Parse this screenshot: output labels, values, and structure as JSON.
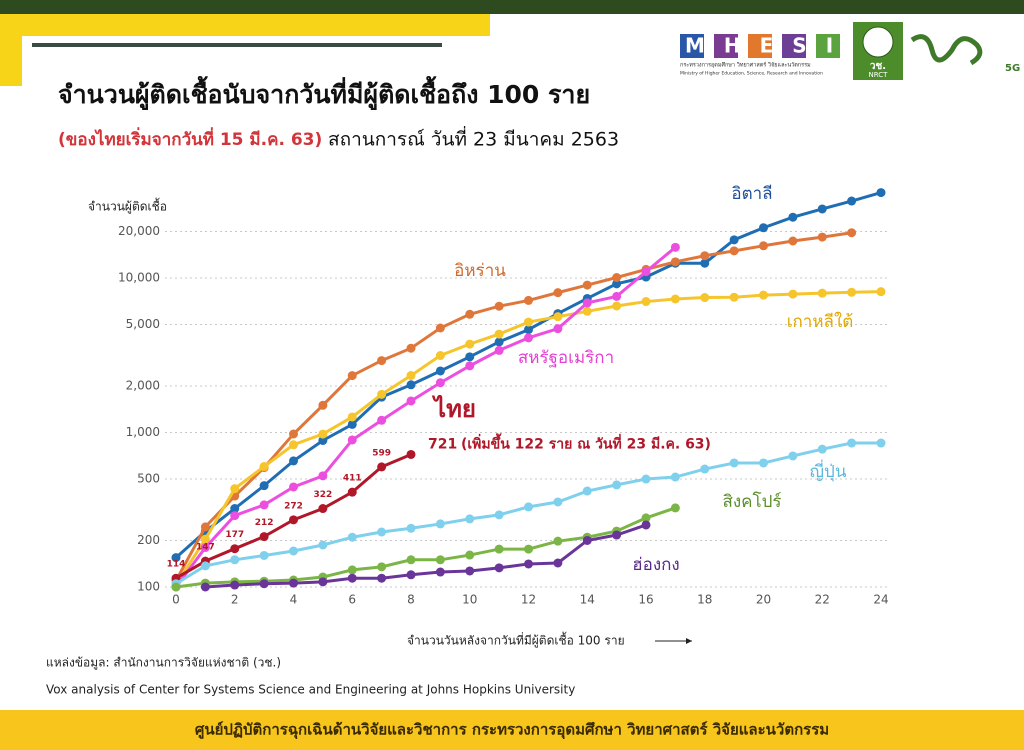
{
  "chart_data": {
    "type": "line",
    "title": "จำนวนผู้ติดเชื้อนับจากวันที่มีผู้ติดเชื้อถึง 100 ราย",
    "subtitle_note": "(ของไทยเริ่มจากวันที่ 15 มี.ค. 63)",
    "subtitle": "สถานการณ์ วันที่ 23 มีนาคม 2563",
    "y_label": "จำนวนผู้ติดเชื้อ",
    "x_label": "จำนวนวันหลังจากวันที่มีผู้ติดเชื้อ 100 ราย",
    "log_y": true,
    "grid": true,
    "xlim": [
      -0.4,
      24.4
    ],
    "ylim": [
      100,
      40000
    ],
    "xticks": [
      0,
      2,
      4,
      6,
      8,
      10,
      12,
      14,
      16,
      18,
      20,
      22,
      24
    ],
    "yticks": [
      100,
      200,
      500,
      {
        "value": 1000,
        "label": "1,000"
      },
      {
        "value": 2000,
        "label": "2,000"
      },
      {
        "value": 5000,
        "label": "5,000"
      },
      {
        "value": 10000,
        "label": "10,000"
      },
      {
        "value": 20000,
        "label": "20,000"
      }
    ],
    "x": [
      0,
      1,
      2,
      3,
      4,
      5,
      6,
      7,
      8,
      9,
      10,
      11,
      12,
      13,
      14,
      15,
      16,
      17,
      18,
      19,
      20,
      21,
      22,
      23,
      24
    ],
    "series": [
      {
        "name": "อิตาลี",
        "color": "#1f6db3",
        "values": [
          155,
          229,
          322,
          453,
          655,
          888,
          1128,
          1694,
          2036,
          2502,
          3089,
          3858,
          4636,
          5883,
          7375,
          9172,
          10149,
          12462,
          12462,
          17660,
          21157,
          24747,
          27980,
          31506,
          35713
        ]
      },
      {
        "name": "อิหร่าน",
        "color": "#e0773a",
        "values": [
          110,
          245,
          388,
          593,
          978,
          1501,
          2336,
          2922,
          3513,
          4747,
          5823,
          6566,
          7161,
          8042,
          9000,
          10075,
          11364,
          12729,
          13938,
          14991,
          16169,
          17361,
          18407,
          19644,
          null
        ]
      },
      {
        "name": "เกาหลีใต้",
        "color": "#f5c52b",
        "values": [
          104,
          204,
          433,
          602,
          833,
          977,
          1261,
          1766,
          2337,
          3150,
          3736,
          4335,
          5186,
          5621,
          6088,
          6593,
          7041,
          7314,
          7478,
          7513,
          7755,
          7869,
          7979,
          8086,
          8162
        ]
      },
      {
        "name": "สหรัฐอเมริกา",
        "color": "#ec4fe0",
        "values": [
          100,
          180,
          290,
          340,
          444,
          524,
          895,
          1200,
          1600,
          2100,
          2700,
          3400,
          4100,
          4700,
          6900,
          7600,
          11000,
          15800,
          null,
          null,
          null,
          null,
          null,
          null,
          null
        ]
      },
      {
        "name": "ไทย",
        "color": "#b0182a",
        "values": [
          114,
          147,
          177,
          212,
          272,
          322,
          411,
          599,
          721,
          null,
          null,
          null,
          null,
          null,
          null,
          null,
          null,
          null,
          null,
          null,
          null,
          null,
          null,
          null,
          null
        ]
      },
      {
        "name": "ญี่ปุ่น",
        "color": "#7fd0ec",
        "values": [
          105,
          137,
          150,
          160,
          171,
          187,
          210,
          227,
          240,
          256,
          276,
          293,
          330,
          355,
          418,
          458,
          500,
          515,
          580,
          635,
          635,
          705,
          780,
          855,
          855
        ]
      },
      {
        "name": "สิงคโปร์",
        "color": "#7bb545",
        "values": [
          100,
          106,
          108,
          109,
          111,
          116,
          129,
          135,
          150,
          150,
          161,
          176,
          176,
          198,
          210,
          230,
          280,
          325,
          null,
          null,
          null,
          null,
          null,
          null,
          null
        ]
      },
      {
        "name": "ฮ่องกง",
        "color": "#6a3599",
        "values": [
          null,
          100,
          103,
          105,
          106,
          108,
          114,
          114,
          120,
          125,
          127,
          133,
          141,
          143,
          200,
          217,
          252,
          null,
          null,
          null,
          null,
          null,
          null,
          null,
          null
        ]
      }
    ],
    "annotation": "(เพิ่มขึ้น  122 ราย ณ วันที่ 23 มี.ค. 63)"
  },
  "logos": {
    "mhesi": "MHESI",
    "ministry_th": "กระทรวงการอุดมศึกษา วิทยาศาสตร์ วิจัยและนวัตกรรม",
    "ministry_en": "Ministry of Higher Education, Science, Research and Innovation",
    "nrct_th": "วช.",
    "nrct_en": "NRCT",
    "fiveg": "5G"
  },
  "source": [
    "แหล่งข้อมูล: สำนักงานการวิจัยแห่งชาติ (วช.)",
    "Vox analysis of Center for Systems Science and Engineering at Johns Hopkins University"
  ],
  "footer": "ศูนย์ปฏิบัติการฉุกเฉินด้านวิจัยและวิชาการ กระทรวงการอุดมศึกษา วิทยาศาสตร์ วิจัยและนวัตกรรม"
}
